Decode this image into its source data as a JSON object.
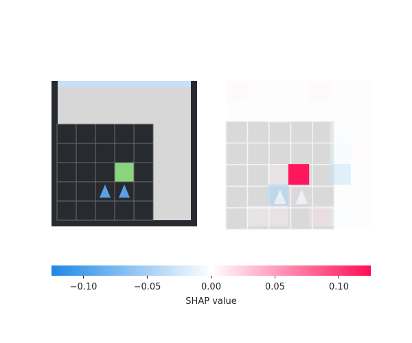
{
  "chart_data": {
    "type": "heatmap",
    "panels": [
      {
        "name": "observation",
        "description": "grid observation",
        "grid_rows": 5,
        "grid_cols": 5,
        "agent_markers": [
          {
            "row": 3,
            "col": 2
          },
          {
            "row": 3,
            "col": 3
          }
        ],
        "goal_cell": {
          "row": 2,
          "col": 3
        },
        "colors": {
          "frame": "#272b30",
          "floor": "#d7d7d7",
          "cell": "#272b30",
          "grid_line": "#6e6e6e",
          "goal": "#88d57d",
          "agent": "#5aa0e6",
          "sky": "#c8dff8"
        }
      },
      {
        "name": "shap-overlay",
        "description": "SHAP value heatmap over the observation",
        "grid_rows": 7,
        "grid_cols": 7,
        "values": [
          [
            0.005,
            0.0,
            0.0,
            0.0,
            0.006,
            0.0,
            0.0
          ],
          [
            0.0,
            0.0,
            -0.004,
            0.0,
            0.0,
            0.0,
            0.0
          ],
          [
            0.0,
            0.0,
            0.0,
            0.0,
            0.0,
            -0.006,
            0.0
          ],
          [
            0.0,
            0.0,
            0.0,
            0.0,
            0.0,
            -0.008,
            0.004
          ],
          [
            0.0,
            0.0,
            0.005,
            0.12,
            0.0,
            -0.03,
            0.0
          ],
          [
            0.0,
            0.0,
            -0.045,
            0.0,
            0.0,
            0.0,
            0.0
          ],
          [
            0.0,
            0.004,
            0.008,
            0.0,
            0.015,
            -0.006,
            0.0
          ]
        ]
      }
    ],
    "colorbar": {
      "label": "SHAP value",
      "range": [
        -0.125,
        0.125
      ],
      "ticks": [
        -0.1,
        -0.05,
        0.0,
        0.05,
        0.1
      ],
      "tick_labels": [
        "−0.10",
        "−0.05",
        "0.00",
        "0.05",
        "0.10"
      ],
      "colors": {
        "negative": "#1e88e5",
        "zero": "#ffffff",
        "positive": "#ff0d57"
      }
    }
  }
}
